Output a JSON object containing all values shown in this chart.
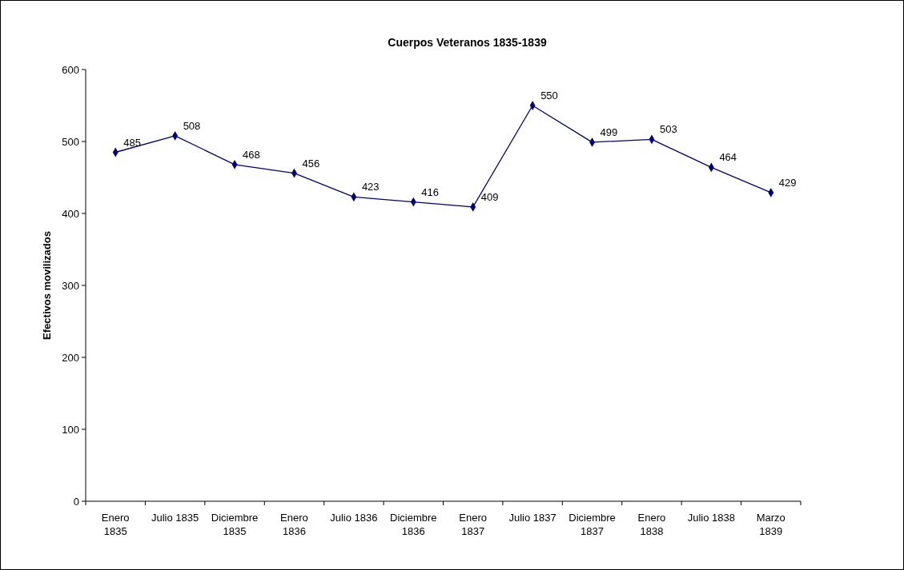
{
  "chart_data": {
    "type": "line",
    "title": "Cuerpos Veteranos 1835-1839",
    "ylabel": "Efectivos movilizados",
    "categories": [
      "Enero\n1835",
      "Julio 1835",
      "Diciembre\n1835",
      "Enero\n1836",
      "Julio 1836",
      "Diciembre\n1836",
      "Enero\n1837",
      "Julio 1837",
      "Diciembre\n1837",
      "Enero\n1838",
      "Julio 1838",
      "Marzo\n1839"
    ],
    "series": [
      {
        "color": "#000080",
        "values": [
          485,
          508,
          468,
          456,
          423,
          416,
          409,
          550,
          499,
          503,
          464,
          429
        ]
      }
    ],
    "ylim": [
      0,
      600
    ],
    "yticks": [
      0,
      100,
      200,
      300,
      400,
      500,
      600
    ],
    "marker": "diamond",
    "line_style": "solid",
    "data_labels": true,
    "grid": false
  }
}
